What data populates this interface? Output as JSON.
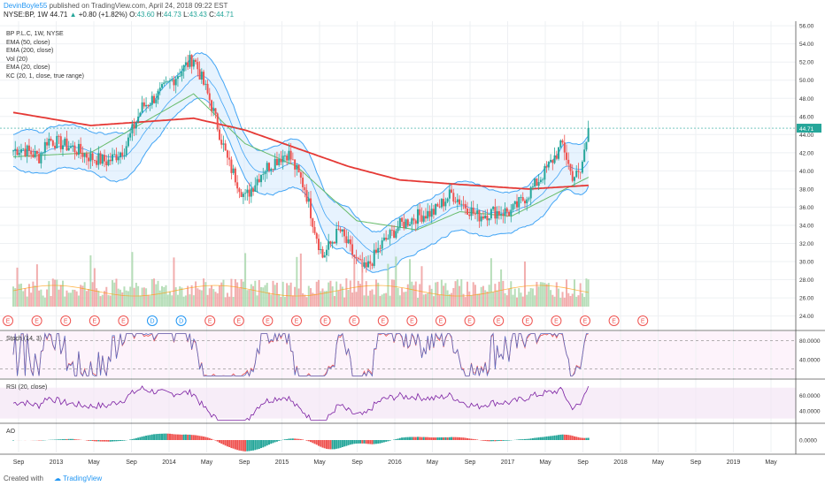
{
  "header": {
    "author": "DevinBoyle55",
    "publish_text": "published on TradingView.com, April 24, 2018 09:22 EST",
    "quote": {
      "symbol": "NYSE:BP, 1W",
      "last": "44.71",
      "change": "+0.80 (+1.82%)",
      "o_label": "O:",
      "o": "43.60",
      "h_label": "H:",
      "h": "44.73",
      "l_label": "L:",
      "l": "43.43",
      "c_label": "C:",
      "c": "44.71"
    }
  },
  "legend": [
    "BP P.L.C, 1W, NYSE",
    "EMA (50, close)",
    "EMA (200, close)",
    "Vol (20)",
    "EMA (20, close)",
    "KC (20, 1, close, true range)"
  ],
  "footer": {
    "created_with": "Created with",
    "brand": "TradingView"
  },
  "colors": {
    "up": "#26a69a",
    "down": "#ef5350",
    "ema200": "#e53935",
    "ema50": "#43a047",
    "kc": "#42a5f5",
    "ema20": "#2e7d32"
  },
  "chart_data": [
    {
      "type": "candlestick",
      "title": "BP P.L.C, 1W, NYSE",
      "ylim": [
        22.5,
        56.5
      ],
      "y_ticks": [
        "56.00",
        "54.00",
        "52.00",
        "50.00",
        "48.00",
        "46.00",
        "44.00",
        "42.00",
        "40.00",
        "38.00",
        "36.00",
        "34.00",
        "32.00",
        "30.00",
        "28.00",
        "26.00",
        "24.00"
      ],
      "last_price_label": "44.71",
      "x_ticks": [
        "Sep",
        "2013",
        "May",
        "Sep",
        "2014",
        "May",
        "Sep",
        "2015",
        "May",
        "Sep",
        "2016",
        "May",
        "Sep",
        "2017",
        "May",
        "Sep",
        "2018",
        "May",
        "Sep",
        "2019",
        "May"
      ],
      "close_anchors": [
        [
          "2012-08",
          42.0
        ],
        [
          "2012-10",
          42.5
        ],
        [
          "2012-12",
          41.5
        ],
        [
          "2013-01",
          43.5
        ],
        [
          "2013-04",
          42.5
        ],
        [
          "2013-06",
          41.5
        ],
        [
          "2013-08",
          41.0
        ],
        [
          "2013-10",
          42.5
        ],
        [
          "2013-12",
          47.0
        ],
        [
          "2014-02",
          48.5
        ],
        [
          "2014-04",
          50.5
        ],
        [
          "2014-06",
          52.5
        ],
        [
          "2014-08",
          47.5
        ],
        [
          "2014-10",
          41.0
        ],
        [
          "2014-12",
          37.0
        ],
        [
          "2015-02",
          40.0
        ],
        [
          "2015-04",
          41.5
        ],
        [
          "2015-05",
          42.0
        ],
        [
          "2015-07",
          38.0
        ],
        [
          "2015-08",
          34.0
        ],
        [
          "2015-09",
          30.5
        ],
        [
          "2015-11",
          33.5
        ],
        [
          "2016-01",
          30.0
        ],
        [
          "2016-02",
          29.0
        ],
        [
          "2016-04",
          32.0
        ],
        [
          "2016-06",
          34.0
        ],
        [
          "2016-08",
          35.0
        ],
        [
          "2016-10",
          35.5
        ],
        [
          "2016-12",
          37.5
        ],
        [
          "2017-03",
          35.0
        ],
        [
          "2017-05",
          35.5
        ],
        [
          "2017-07",
          35.5
        ],
        [
          "2017-09",
          37.5
        ],
        [
          "2017-11",
          40.0
        ],
        [
          "2018-01",
          43.0
        ],
        [
          "2018-02",
          39.5
        ],
        [
          "2018-03",
          39.5
        ],
        [
          "2018-04",
          44.71
        ]
      ],
      "series_lines": {
        "ema200": [
          [
            "2012-08",
            46.6
          ],
          [
            "2013-06",
            45.0
          ],
          [
            "2014-06",
            45.8
          ],
          [
            "2014-12",
            44.5
          ],
          [
            "2015-06",
            42.5
          ],
          [
            "2015-12",
            40.5
          ],
          [
            "2016-06",
            39.0
          ],
          [
            "2017-01",
            38.5
          ],
          [
            "2017-09",
            38.0
          ],
          [
            "2018-04",
            38.4
          ]
        ],
        "ema50": [
          [
            "2012-08",
            41.5
          ],
          [
            "2013-06",
            42.0
          ],
          [
            "2014-06",
            48.5
          ],
          [
            "2014-12",
            43.0
          ],
          [
            "2015-06",
            40.5
          ],
          [
            "2016-01",
            34.5
          ],
          [
            "2016-08",
            33.5
          ],
          [
            "2017-01",
            35.5
          ],
          [
            "2017-07",
            35.0
          ],
          [
            "2018-04",
            39.3
          ]
        ]
      }
    },
    {
      "type": "bar",
      "title": "Vol (20)",
      "earnings_markers": [
        "E",
        "E",
        "E",
        "E",
        "E",
        "D",
        "D",
        "E",
        "E",
        "E",
        "E",
        "E",
        "E",
        "E",
        "E",
        "E",
        "E",
        "E",
        "E",
        "E",
        "E",
        "E",
        "E"
      ]
    },
    {
      "type": "line",
      "title": "Stoch (14, 3)",
      "y_ticks": [
        "80.0000",
        "40.0000"
      ],
      "ylim": [
        0,
        100
      ]
    },
    {
      "type": "line",
      "title": "RSI (20, close)",
      "y_ticks": [
        "60.0000",
        "40.0000"
      ],
      "ylim": [
        25,
        80
      ]
    },
    {
      "type": "bar",
      "title": "AO",
      "y_ticks": [
        "0.0000"
      ]
    }
  ]
}
